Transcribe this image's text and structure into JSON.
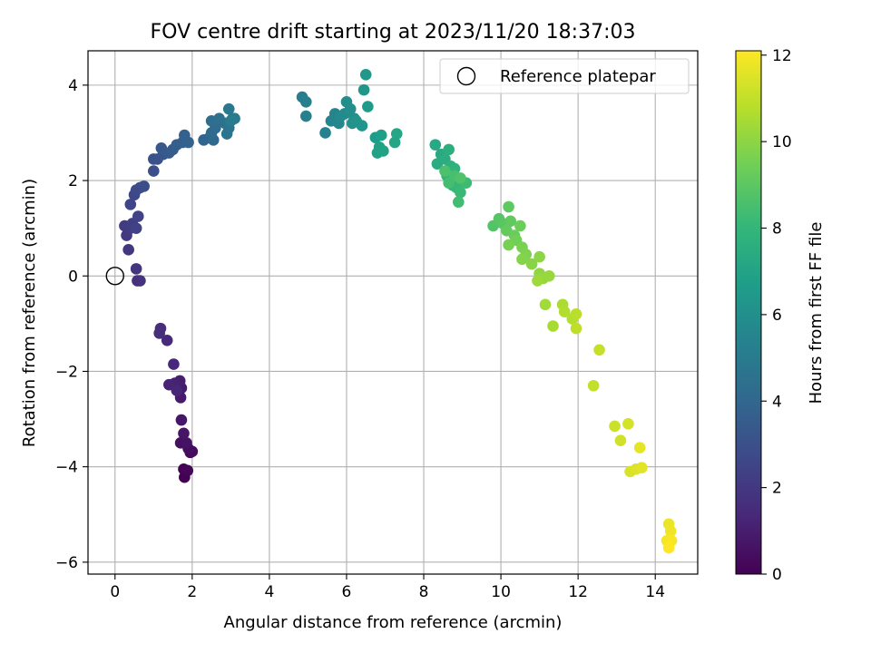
{
  "chart_data": {
    "type": "scatter",
    "title": "FOV centre drift starting at 2023/11/20 18:37:03",
    "xlabel": "Angular distance from reference (arcmin)",
    "ylabel": "Rotation from reference (arcmin)",
    "xlim": [
      -0.7,
      15.1
    ],
    "ylim": [
      -6.25,
      4.72
    ],
    "xticks": [
      0,
      2,
      4,
      6,
      8,
      10,
      12,
      14
    ],
    "yticks": [
      -6,
      -4,
      -2,
      0,
      2,
      4
    ],
    "grid": true,
    "legend": {
      "entries": [
        "Reference platepar"
      ],
      "placement": "upper right"
    },
    "colorbar": {
      "label": "Hours from first FF file",
      "range": [
        0,
        12.1
      ],
      "ticks": [
        0,
        2,
        4,
        6,
        8,
        10,
        12
      ],
      "colormap": "viridis",
      "colormap_stops": [
        "#440154",
        "#482878",
        "#3e4989",
        "#31688e",
        "#26828e",
        "#1f9e89",
        "#35b779",
        "#6ece58",
        "#b5de2b",
        "#fde725"
      ]
    },
    "reference_point": {
      "name": "Reference platepar",
      "x": 0.0,
      "y": 0.0
    },
    "series": [
      {
        "points": [
          [
            1.8,
            -4.22
          ],
          [
            1.78,
            -4.05
          ],
          [
            1.88,
            -4.08
          ],
          [
            1.95,
            -3.7
          ],
          [
            2.0,
            -3.68
          ],
          [
            1.9,
            -3.62
          ],
          [
            1.7,
            -3.5
          ],
          [
            1.85,
            -3.5
          ],
          [
            1.78,
            -3.3
          ],
          [
            1.72,
            -3.02
          ],
          [
            1.7,
            -2.55
          ],
          [
            1.72,
            -2.35
          ],
          [
            1.68,
            -2.2
          ],
          [
            1.55,
            -2.25
          ],
          [
            1.4,
            -2.28
          ],
          [
            1.6,
            -2.4
          ],
          [
            1.52,
            -1.85
          ],
          [
            1.35,
            -1.35
          ],
          [
            1.18,
            -1.1
          ],
          [
            1.15,
            -1.2
          ],
          [
            0.58,
            -0.1
          ],
          [
            0.65,
            -0.1
          ],
          [
            0.55,
            0.15
          ],
          [
            0.35,
            0.55
          ],
          [
            0.3,
            0.85
          ],
          [
            0.25,
            1.05
          ],
          [
            0.4,
            1.0
          ],
          [
            0.45,
            1.1
          ],
          [
            0.55,
            1.0
          ],
          [
            0.6,
            1.25
          ],
          [
            0.4,
            1.5
          ],
          [
            0.5,
            1.7
          ],
          [
            0.55,
            1.8
          ],
          [
            0.65,
            1.85
          ],
          [
            0.75,
            1.88
          ],
          [
            1.0,
            2.2
          ],
          [
            1.0,
            2.45
          ],
          [
            1.1,
            2.45
          ],
          [
            1.25,
            2.55
          ],
          [
            1.2,
            2.68
          ],
          [
            1.4,
            2.58
          ],
          [
            1.5,
            2.65
          ],
          [
            1.6,
            2.75
          ],
          [
            1.75,
            2.8
          ],
          [
            1.8,
            2.95
          ],
          [
            1.9,
            2.8
          ],
          [
            2.3,
            2.85
          ],
          [
            2.45,
            2.9
          ],
          [
            2.55,
            2.85
          ],
          [
            2.5,
            3.0
          ],
          [
            2.6,
            3.1
          ],
          [
            2.5,
            3.25
          ],
          [
            2.7,
            3.3
          ],
          [
            2.85,
            3.2
          ],
          [
            2.95,
            3.1
          ],
          [
            2.9,
            2.98
          ],
          [
            3.05,
            3.3
          ],
          [
            2.95,
            3.5
          ],
          [
            3.1,
            3.3
          ],
          [
            3.0,
            3.25
          ],
          [
            4.85,
            3.75
          ],
          [
            4.95,
            3.65
          ],
          [
            4.95,
            3.35
          ],
          [
            5.45,
            3.0
          ],
          [
            5.6,
            3.25
          ],
          [
            5.7,
            3.4
          ],
          [
            5.8,
            3.2
          ],
          [
            5.85,
            3.35
          ],
          [
            5.95,
            3.4
          ],
          [
            6.0,
            3.65
          ],
          [
            6.1,
            3.5
          ],
          [
            6.2,
            3.3
          ],
          [
            6.15,
            3.2
          ],
          [
            6.25,
            3.25
          ],
          [
            6.4,
            3.15
          ],
          [
            6.45,
            3.9
          ],
          [
            6.5,
            4.22
          ],
          [
            6.55,
            3.55
          ],
          [
            6.75,
            2.9
          ],
          [
            6.9,
            2.95
          ],
          [
            6.85,
            2.7
          ],
          [
            6.8,
            2.58
          ],
          [
            6.95,
            2.62
          ],
          [
            7.25,
            2.8
          ],
          [
            7.3,
            2.98
          ],
          [
            8.3,
            2.75
          ],
          [
            8.45,
            2.55
          ],
          [
            8.35,
            2.35
          ],
          [
            8.55,
            2.45
          ],
          [
            8.65,
            2.65
          ],
          [
            8.7,
            2.3
          ],
          [
            8.8,
            2.25
          ],
          [
            8.6,
            2.1
          ],
          [
            8.7,
            2.0
          ],
          [
            8.75,
            1.9
          ],
          [
            8.85,
            1.85
          ],
          [
            8.95,
            1.75
          ],
          [
            9.1,
            1.95
          ],
          [
            8.9,
            1.55
          ],
          [
            8.65,
            1.95
          ],
          [
            8.8,
            2.1
          ],
          [
            8.55,
            2.2
          ],
          [
            8.95,
            2.05
          ],
          [
            9.8,
            1.05
          ],
          [
            9.95,
            1.2
          ],
          [
            10.05,
            1.1
          ],
          [
            10.2,
            1.45
          ],
          [
            10.25,
            1.15
          ],
          [
            10.15,
            0.95
          ],
          [
            10.35,
            0.85
          ],
          [
            10.5,
            1.05
          ],
          [
            10.4,
            0.75
          ],
          [
            10.2,
            0.65
          ],
          [
            10.55,
            0.6
          ],
          [
            10.65,
            0.45
          ],
          [
            10.55,
            0.35
          ],
          [
            10.8,
            0.25
          ],
          [
            11.0,
            0.4
          ],
          [
            11.0,
            0.05
          ],
          [
            11.1,
            -0.05
          ],
          [
            11.25,
            0.0
          ],
          [
            10.95,
            -0.1
          ],
          [
            11.15,
            -0.6
          ],
          [
            11.35,
            -1.05
          ],
          [
            11.6,
            -0.6
          ],
          [
            11.65,
            -0.75
          ],
          [
            11.85,
            -0.9
          ],
          [
            11.95,
            -0.8
          ],
          [
            11.95,
            -1.1
          ],
          [
            12.4,
            -2.3
          ],
          [
            12.55,
            -1.55
          ],
          [
            12.95,
            -3.15
          ],
          [
            13.1,
            -3.45
          ],
          [
            13.3,
            -3.1
          ],
          [
            13.35,
            -4.1
          ],
          [
            13.5,
            -4.05
          ],
          [
            13.65,
            -4.02
          ],
          [
            13.6,
            -3.6
          ],
          [
            14.35,
            -5.2
          ],
          [
            14.4,
            -5.35
          ],
          [
            14.3,
            -5.55
          ],
          [
            14.42,
            -5.55
          ],
          [
            14.35,
            -5.7
          ]
        ]
      }
    ]
  }
}
